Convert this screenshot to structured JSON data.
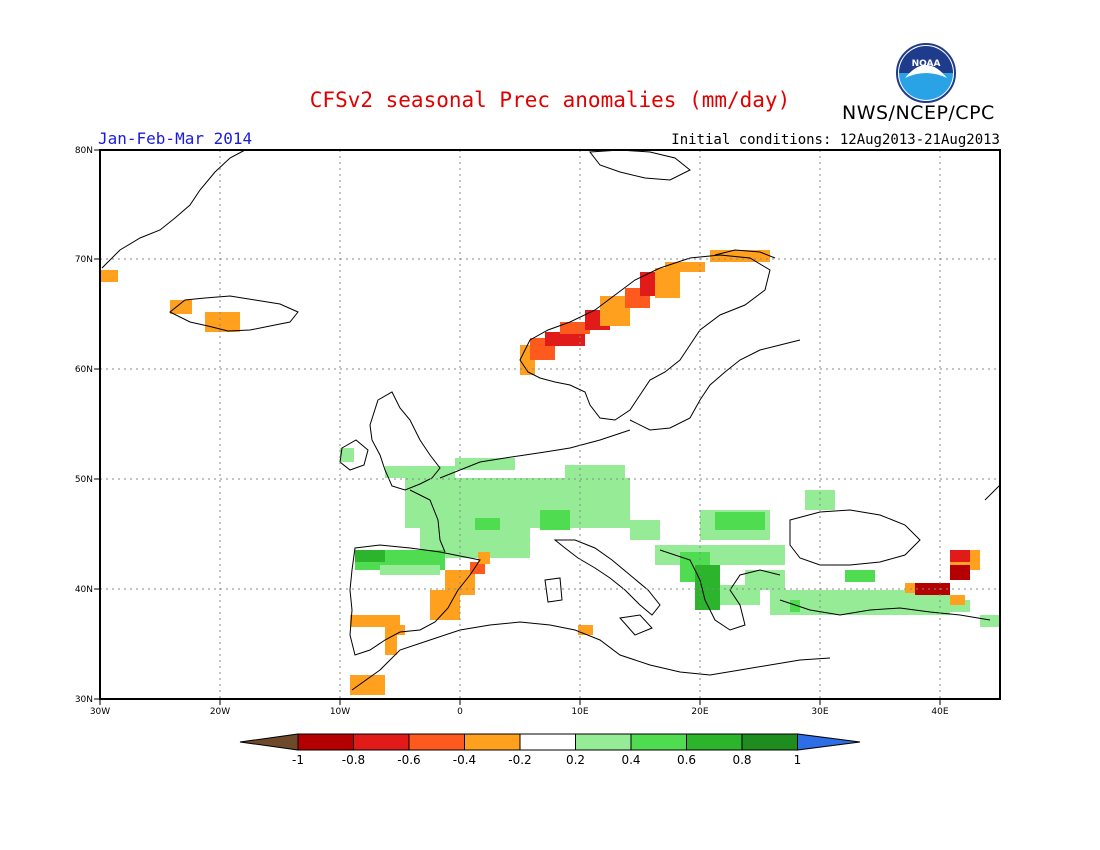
{
  "title": "CFSv2 seasonal Prec anomalies (mm/day)",
  "agency": "NWS/NCEP/CPC",
  "logo_text": "NOAA",
  "period": "Jan-Feb-Mar 2014",
  "initial_conditions": "Initial conditions: 12Aug2013-21Aug2013",
  "lon_ticks": [
    "30W",
    "20W",
    "10W",
    "0",
    "10E",
    "20E",
    "30E",
    "40E"
  ],
  "lat_ticks": [
    "30N",
    "40N",
    "50N",
    "60N",
    "70N",
    "80N"
  ],
  "colorbar": {
    "labels": [
      "-1",
      "-0.8",
      "-0.6",
      "-0.4",
      "-0.2",
      "0.2",
      "0.4",
      "0.6",
      "0.8",
      "1"
    ],
    "colors": [
      "#6e4a2a",
      "#b40000",
      "#e11a1a",
      "#ff5a1e",
      "#ffa01e",
      "#ffffff",
      "#96eb96",
      "#50dc50",
      "#2db42d",
      "#1e8c1e",
      "#2d6ee6"
    ]
  },
  "colors": {
    "title": "#e00000",
    "period": "#1a1adc",
    "grid": "#888888"
  }
}
